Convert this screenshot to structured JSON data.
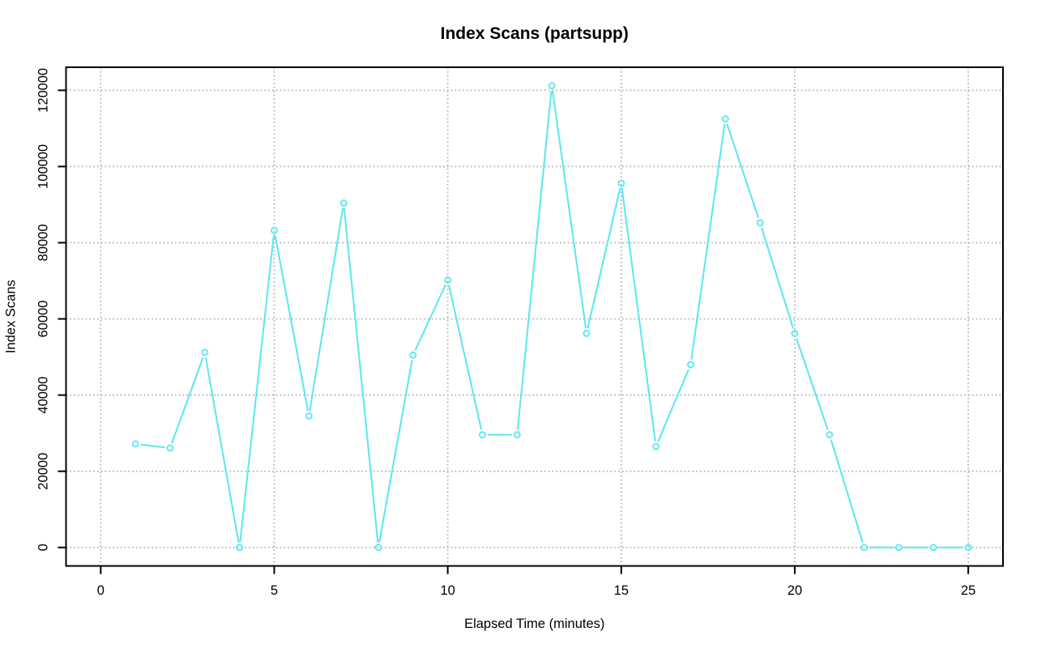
{
  "window": {
    "background_color": "#FFFFFF"
  },
  "chart_data": {
    "type": "line",
    "title": "Index Scans (partsupp)",
    "xlabel": "Elapsed Time (minutes)",
    "ylabel": "Index Scans",
    "x": [
      1,
      2,
      3,
      4,
      5,
      6,
      7,
      8,
      9,
      10,
      11,
      12,
      13,
      14,
      15,
      16,
      17,
      18,
      19,
      20,
      21,
      22,
      23,
      24,
      25
    ],
    "values": [
      27200,
      26100,
      51200,
      0,
      83200,
      34500,
      90400,
      0,
      50500,
      70200,
      29600,
      29600,
      121200,
      56200,
      95600,
      26500,
      48000,
      112500,
      85200,
      56200,
      29600,
      0,
      0,
      0,
      0
    ],
    "series": [
      {
        "name": "Index Scans",
        "values": [
          27200,
          26100,
          51200,
          0,
          83200,
          34500,
          90400,
          0,
          50500,
          70200,
          29600,
          29600,
          121200,
          56200,
          95600,
          26500,
          48000,
          112500,
          85200,
          56200,
          29600,
          0,
          0,
          0,
          0
        ]
      }
    ],
    "x_ticks": [
      0,
      5,
      10,
      15,
      20,
      25
    ],
    "x_tick_labels": [
      "0",
      "5",
      "10",
      "15",
      "20",
      "25"
    ],
    "y_ticks": [
      0,
      20000,
      40000,
      60000,
      80000,
      100000,
      120000
    ],
    "y_tick_labels": [
      "0",
      "20000",
      "40000",
      "60000",
      "80000",
      "100000",
      "120000"
    ],
    "xlim": [
      -1,
      26
    ],
    "ylim": [
      -4850,
      126050
    ],
    "grid": true,
    "grid_line_style": "dotted",
    "legend_position": "none",
    "marker": "open-circle",
    "plot_type": "points-and-segments",
    "colors": {
      "series_line": "#5FE7F1",
      "marker_stroke": "#5FE7F1",
      "grid": "#B2B2B2",
      "axis_box": "#000000",
      "text": "#000000",
      "background": "#FFFFFF"
    }
  }
}
